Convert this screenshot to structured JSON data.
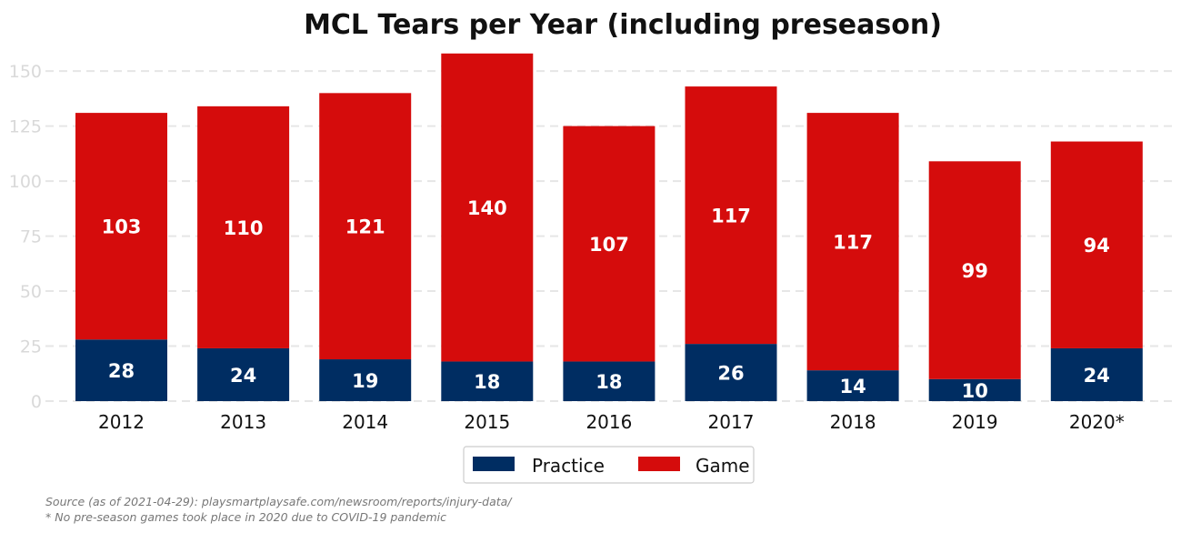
{
  "chart_data": {
    "type": "bar",
    "stacked": true,
    "title": "MCL Tears per Year (including preseason)",
    "xlabel": "",
    "ylabel": "",
    "categories": [
      "2012",
      "2013",
      "2014",
      "2015",
      "2016",
      "2017",
      "2018",
      "2019",
      "2020*"
    ],
    "series": [
      {
        "name": "Practice",
        "color": "#002d62",
        "values": [
          28,
          24,
          19,
          18,
          18,
          26,
          14,
          10,
          24
        ]
      },
      {
        "name": "Game",
        "color": "#d50c0c",
        "values": [
          103,
          110,
          121,
          140,
          107,
          117,
          117,
          99,
          94
        ]
      }
    ],
    "ylim": [
      0,
      160
    ],
    "yticks": [
      0,
      25,
      50,
      75,
      100,
      125,
      150
    ],
    "grid": true,
    "grid_style": "dashed-horizontal",
    "legend_position": "bottom-center"
  },
  "footnotes": {
    "source": "Source (as of 2021-04-29): playsmartplaysafe.com/newsroom/reports/injury-data/",
    "note": "* No pre-season games took place in 2020 due to COVID-19 pandemic"
  }
}
